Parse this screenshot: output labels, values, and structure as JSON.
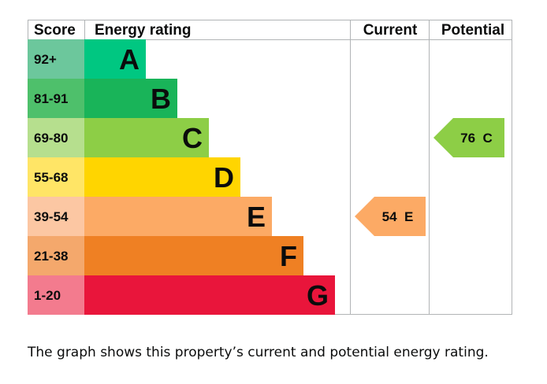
{
  "chart_data": {
    "type": "bar",
    "headers": {
      "score": "Score",
      "rating": "Energy rating",
      "current": "Current",
      "potential": "Potential"
    },
    "bands": [
      {
        "score": "92+",
        "letter": "A",
        "score_color": "#6cc79c",
        "bar_color": "#00c781"
      },
      {
        "score": "81-91",
        "letter": "B",
        "score_color": "#4ec06b",
        "bar_color": "#19b459"
      },
      {
        "score": "69-80",
        "letter": "C",
        "score_color": "#b6df8e",
        "bar_color": "#8dce46"
      },
      {
        "score": "55-68",
        "letter": "D",
        "score_color": "#ffe566",
        "bar_color": "#ffd500"
      },
      {
        "score": "39-54",
        "letter": "E",
        "score_color": "#fcc7a3",
        "bar_color": "#fcaa65"
      },
      {
        "score": "21-38",
        "letter": "F",
        "score_color": "#f4a86c",
        "bar_color": "#ef8023"
      },
      {
        "score": "1-20",
        "letter": "G",
        "score_color": "#f37b8e",
        "bar_color": "#e9153b"
      }
    ],
    "current": {
      "value": 54,
      "letter": "E",
      "label": "54  E",
      "color": "#fcaa65"
    },
    "potential": {
      "value": 76,
      "letter": "C",
      "label": "76  C",
      "color": "#8dce46"
    }
  },
  "caption": "The graph shows this property’s current and potential energy rating."
}
